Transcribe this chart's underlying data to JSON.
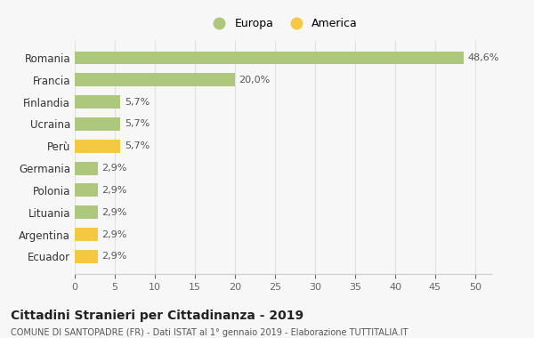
{
  "categories": [
    "Romania",
    "Francia",
    "Finlandia",
    "Ucraina",
    "Perù",
    "Germania",
    "Polonia",
    "Lituania",
    "Argentina",
    "Ecuador"
  ],
  "values": [
    48.6,
    20.0,
    5.7,
    5.7,
    5.7,
    2.9,
    2.9,
    2.9,
    2.9,
    2.9
  ],
  "labels": [
    "48,6%",
    "20,0%",
    "5,7%",
    "5,7%",
    "5,7%",
    "2,9%",
    "2,9%",
    "2,9%",
    "2,9%",
    "2,9%"
  ],
  "colors": [
    "#adc87c",
    "#adc87c",
    "#adc87c",
    "#adc87c",
    "#f5c842",
    "#adc87c",
    "#adc87c",
    "#adc87c",
    "#f5c842",
    "#f5c842"
  ],
  "europa_color": "#adc87c",
  "america_color": "#f5c842",
  "background_color": "#f7f7f7",
  "grid_color": "#e0e0e0",
  "title": "Cittadini Stranieri per Cittadinanza - 2019",
  "subtitle": "COMUNE DI SANTOPADRE (FR) - Dati ISTAT al 1° gennaio 2019 - Elaborazione TUTTITALIA.IT",
  "xlim": [
    0,
    52
  ],
  "xticks": [
    0,
    5,
    10,
    15,
    20,
    25,
    30,
    35,
    40,
    45,
    50
  ]
}
